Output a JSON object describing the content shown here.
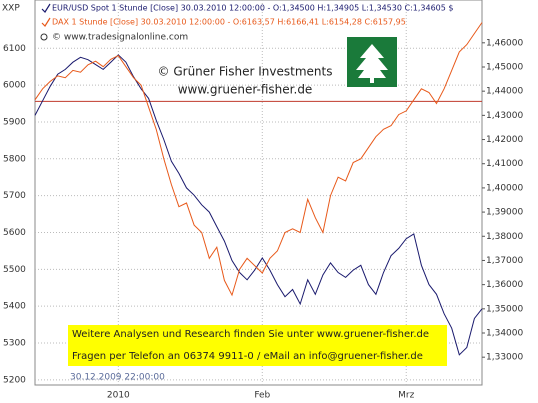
{
  "chart_data": {
    "type": "line",
    "axis_label_top": "XXP",
    "credit": "© www.tradesignalonline.com",
    "watermark": [
      "© Grüner Fisher Investments",
      "www.gruener-fisher.de"
    ],
    "notice": [
      "Weitere Analysen und Research finden Sie unter www.gruener-fisher.de",
      "Fragen per Telefon an 06374 9911-0 / eMail an info@gruener-fisher.de"
    ],
    "start_label": "30.12.2009 22:00:00",
    "categories": [
      null,
      null,
      null,
      null,
      null,
      null,
      null,
      null,
      null,
      null,
      null,
      "2010",
      null,
      null,
      null,
      null,
      null,
      null,
      null,
      null,
      null,
      null,
      null,
      null,
      null,
      null,
      null,
      null,
      null,
      null,
      "Feb",
      null,
      null,
      null,
      null,
      null,
      null,
      null,
      null,
      null,
      null,
      null,
      null,
      null,
      null,
      null,
      null,
      null,
      null,
      "Mrz",
      null,
      null,
      null,
      null,
      null,
      null,
      null,
      null,
      null,
      null
    ],
    "series": [
      {
        "name": "EUR/USD Spot 1 Stunde [Close] 30.03.2010 12:00:00 - O:1,34500 H:1,34905 L:1,34530 C:1,34605 $",
        "color": "#1a1a6e",
        "axis": "y2",
        "values": [
          1.43,
          1.436,
          1.442,
          1.447,
          1.449,
          1.452,
          1.454,
          1.453,
          1.451,
          1.449,
          1.452,
          1.455,
          1.452,
          1.446,
          1.441,
          1.437,
          1.428,
          1.42,
          1.411,
          1.406,
          1.4,
          1.397,
          1.393,
          1.39,
          1.384,
          1.378,
          1.37,
          1.365,
          1.362,
          1.366,
          1.371,
          1.366,
          1.36,
          1.355,
          1.358,
          1.352,
          1.362,
          1.356,
          1.364,
          1.369,
          1.365,
          1.363,
          1.366,
          1.368,
          1.36,
          1.356,
          1.365,
          1.372,
          1.375,
          1.379,
          1.381,
          1.368,
          1.36,
          1.356,
          1.348,
          1.342,
          1.331,
          1.334,
          1.346,
          1.35
        ]
      },
      {
        "name": "DAX 1 Stunde [Close] 30.03.2010 12:00:00 - O:6163,57 H:6166,41 L:6154,28 C:6157,95",
        "color": "#e8591a",
        "values": [
          5960,
          5990,
          6010,
          6025,
          6020,
          6040,
          6035,
          6055,
          6065,
          6050,
          6070,
          6080,
          6050,
          6020,
          6000,
          5940,
          5880,
          5800,
          5730,
          5670,
          5680,
          5620,
          5600,
          5530,
          5560,
          5470,
          5430,
          5500,
          5530,
          5510,
          5490,
          5530,
          5550,
          5600,
          5610,
          5600,
          5690,
          5640,
          5600,
          5700,
          5750,
          5740,
          5790,
          5800,
          5830,
          5860,
          5880,
          5890,
          5920,
          5930,
          5960,
          5990,
          5980,
          5950,
          5990,
          6040,
          6090,
          6110,
          6140,
          6170
        ]
      }
    ],
    "ylim": [
      5186,
      6231
    ],
    "yticks": [
      5200,
      5300,
      5400,
      5500,
      5600,
      5700,
      5800,
      5900,
      6000,
      6100
    ],
    "y2lim": [
      1.3185,
      1.4777
    ],
    "y2ticks": [
      {
        "value": 1.33,
        "label": "1,33000"
      },
      {
        "value": 1.34,
        "label": "1,34000"
      },
      {
        "value": 1.35,
        "label": "1,35000"
      },
      {
        "value": 1.36,
        "label": "1,36000"
      },
      {
        "value": 1.37,
        "label": "1,37000"
      },
      {
        "value": 1.38,
        "label": "1,38000"
      },
      {
        "value": 1.39,
        "label": "1,39000"
      },
      {
        "value": 1.4,
        "label": "1,40000"
      },
      {
        "value": 1.41,
        "label": "1,41000"
      },
      {
        "value": 1.42,
        "label": "1,42000"
      },
      {
        "value": 1.43,
        "label": "1,43000"
      },
      {
        "value": 1.44,
        "label": "1,44000"
      },
      {
        "value": 1.45,
        "label": "1,45000"
      },
      {
        "value": 1.46,
        "label": "1,46000"
      }
    ],
    "hline": {
      "value": 5956,
      "color": "#c0392b"
    },
    "grid": true
  }
}
